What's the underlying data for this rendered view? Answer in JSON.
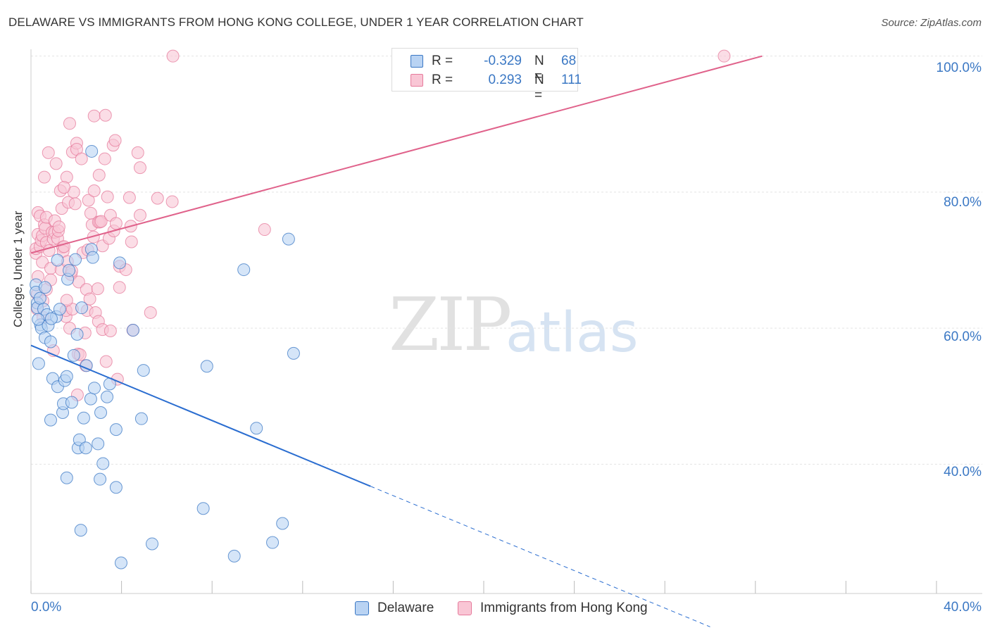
{
  "title": "DELAWARE VS IMMIGRANTS FROM HONG KONG COLLEGE, UNDER 1 YEAR CORRELATION CHART",
  "source": "Source: ZipAtlas.com",
  "watermark": {
    "zip": "ZIP",
    "atlas": "atlas"
  },
  "colors": {
    "blue_fill": "#b9d3f3",
    "blue_stroke": "#3b78c4",
    "blue_line": "#2a6dd0",
    "pink_fill": "#f9c6d5",
    "pink_stroke": "#e67a9b",
    "pink_line": "#e0628b",
    "grid": "#e4e4e4",
    "tick_text": "#3b78c4"
  },
  "legend": {
    "rows": [
      {
        "r_label": "R =",
        "r_value": "-0.329",
        "n_label": "N =",
        "n_value": "68"
      },
      {
        "r_label": "R =",
        "r_value": "0.293",
        "n_label": "N =",
        "n_value": "111"
      }
    ]
  },
  "bottom_legend": {
    "delaware": "Delaware",
    "hongkong": "Immigrants from Hong Kong"
  },
  "chart_data": {
    "type": "scatter",
    "title": "DELAWARE VS IMMIGRANTS FROM HONG KONG COLLEGE, UNDER 1 YEAR CORRELATION CHART",
    "xlabel": "",
    "ylabel": "College, Under 1 year",
    "xlim": [
      0,
      0.4
    ],
    "ylim": [
      0.21,
      1.01
    ],
    "x_tick_labels": {
      "left": "0.0%",
      "right": "40.0%"
    },
    "y_ticks": [
      {
        "value": 1.0,
        "label": "100.0%"
      },
      {
        "value": 0.8,
        "label": "80.0%"
      },
      {
        "value": 0.6,
        "label": "60.0%"
      },
      {
        "value": 0.4,
        "label": "40.0%"
      }
    ],
    "grid": true,
    "series": [
      {
        "name": "Delaware",
        "trend": {
          "x0": 0.0,
          "y0": 0.5747,
          "x1": 0.15,
          "y1": 0.3676,
          "dash_to_x": 0.3,
          "dash_to_y": 0.161
        },
        "points": [
          [
            0.0022,
            0.664
          ],
          [
            0.0022,
            0.653
          ],
          [
            0.0028,
            0.637
          ],
          [
            0.0028,
            0.63
          ],
          [
            0.0034,
            0.548
          ],
          [
            0.004,
            0.644
          ],
          [
            0.0042,
            0.605
          ],
          [
            0.0046,
            0.6
          ],
          [
            0.0056,
            0.628
          ],
          [
            0.0062,
            0.586
          ],
          [
            0.0071,
            0.62
          ],
          [
            0.0076,
            0.604
          ],
          [
            0.0087,
            0.465
          ],
          [
            0.0087,
            0.58
          ],
          [
            0.0096,
            0.526
          ],
          [
            0.0112,
            0.617
          ],
          [
            0.0118,
            0.514
          ],
          [
            0.0127,
            0.628
          ],
          [
            0.014,
            0.476
          ],
          [
            0.0143,
            0.489
          ],
          [
            0.0149,
            0.523
          ],
          [
            0.0158,
            0.38
          ],
          [
            0.0158,
            0.529
          ],
          [
            0.0162,
            0.672
          ],
          [
            0.0168,
            0.685
          ],
          [
            0.018,
            0.491
          ],
          [
            0.0189,
            0.56
          ],
          [
            0.0196,
            0.701
          ],
          [
            0.0208,
            0.424
          ],
          [
            0.0214,
            0.436
          ],
          [
            0.022,
            0.303
          ],
          [
            0.0224,
            0.63
          ],
          [
            0.0233,
            0.468
          ],
          [
            0.0242,
            0.424
          ],
          [
            0.0245,
            0.545
          ],
          [
            0.0264,
            0.496
          ],
          [
            0.0267,
            0.716
          ],
          [
            0.0273,
            0.704
          ],
          [
            0.028,
            0.512
          ],
          [
            0.0296,
            0.43
          ],
          [
            0.0305,
            0.378
          ],
          [
            0.0308,
            0.476
          ],
          [
            0.0318,
            0.401
          ],
          [
            0.0336,
            0.499
          ],
          [
            0.0348,
            0.518
          ],
          [
            0.0376,
            0.451
          ],
          [
            0.0376,
            0.366
          ],
          [
            0.0392,
            0.696
          ],
          [
            0.0398,
            0.255
          ],
          [
            0.0451,
            0.597
          ],
          [
            0.0488,
            0.467
          ],
          [
            0.0497,
            0.538
          ],
          [
            0.0535,
            0.283
          ],
          [
            0.0761,
            0.335
          ],
          [
            0.0777,
            0.544
          ],
          [
            0.0898,
            0.265
          ],
          [
            0.094,
            0.686
          ],
          [
            0.0996,
            0.453
          ],
          [
            0.1067,
            0.285
          ],
          [
            0.1111,
            0.313
          ],
          [
            0.1138,
            0.731
          ],
          [
            0.116,
            0.563
          ],
          [
            0.0268,
            0.86
          ],
          [
            0.0062,
            0.66
          ],
          [
            0.009,
            0.614
          ],
          [
            0.0032,
            0.613
          ],
          [
            0.0117,
            0.7
          ],
          [
            0.0204,
            0.591
          ]
        ]
      },
      {
        "name": "Immigrants from Hong Kong",
        "trend": {
          "x0": 0.0,
          "y0": 0.7105,
          "x1": 0.323,
          "y1": 1.0
        },
        "points": [
          [
            0.0022,
            0.71
          ],
          [
            0.0022,
            0.717
          ],
          [
            0.0028,
            0.65
          ],
          [
            0.0028,
            0.628
          ],
          [
            0.0031,
            0.738
          ],
          [
            0.0031,
            0.77
          ],
          [
            0.0031,
            0.676
          ],
          [
            0.004,
            0.72
          ],
          [
            0.004,
            0.765
          ],
          [
            0.0045,
            0.729
          ],
          [
            0.005,
            0.736
          ],
          [
            0.005,
            0.697
          ],
          [
            0.0053,
            0.64
          ],
          [
            0.0053,
            0.616
          ],
          [
            0.0059,
            0.752
          ],
          [
            0.0059,
            0.822
          ],
          [
            0.0062,
            0.747
          ],
          [
            0.0068,
            0.763
          ],
          [
            0.0068,
            0.726
          ],
          [
            0.0068,
            0.657
          ],
          [
            0.0077,
            0.858
          ],
          [
            0.008,
            0.714
          ],
          [
            0.0087,
            0.688
          ],
          [
            0.0087,
            0.671
          ],
          [
            0.0093,
            0.741
          ],
          [
            0.0099,
            0.567
          ],
          [
            0.0099,
            0.731
          ],
          [
            0.0105,
            0.758
          ],
          [
            0.0105,
            0.741
          ],
          [
            0.0111,
            0.842
          ],
          [
            0.0118,
            0.732
          ],
          [
            0.0121,
            0.743
          ],
          [
            0.0124,
            0.749
          ],
          [
            0.013,
            0.802
          ],
          [
            0.0133,
            0.686
          ],
          [
            0.0136,
            0.776
          ],
          [
            0.014,
            0.719
          ],
          [
            0.0142,
            0.713
          ],
          [
            0.0146,
            0.72
          ],
          [
            0.0155,
            0.617
          ],
          [
            0.0155,
            0.626
          ],
          [
            0.0158,
            0.822
          ],
          [
            0.0161,
            0.698
          ],
          [
            0.0165,
            0.785
          ],
          [
            0.0171,
            0.901
          ],
          [
            0.0177,
            0.679
          ],
          [
            0.018,
            0.684
          ],
          [
            0.0183,
            0.859
          ],
          [
            0.0183,
            0.628
          ],
          [
            0.0189,
            0.8
          ],
          [
            0.0195,
            0.783
          ],
          [
            0.0202,
            0.872
          ],
          [
            0.0202,
            0.863
          ],
          [
            0.0205,
            0.502
          ],
          [
            0.0208,
            0.562
          ],
          [
            0.0211,
            0.668
          ],
          [
            0.0217,
            0.561
          ],
          [
            0.0223,
            0.849
          ],
          [
            0.023,
            0.711
          ],
          [
            0.0239,
            0.593
          ],
          [
            0.0242,
            0.545
          ],
          [
            0.0245,
            0.657
          ],
          [
            0.0248,
            0.626
          ],
          [
            0.0251,
            0.715
          ],
          [
            0.0254,
            0.788
          ],
          [
            0.026,
            0.643
          ],
          [
            0.0264,
            0.769
          ],
          [
            0.027,
            0.752
          ],
          [
            0.0276,
            0.734
          ],
          [
            0.0279,
            0.802
          ],
          [
            0.0279,
            0.912
          ],
          [
            0.0285,
            0.623
          ],
          [
            0.0295,
            0.658
          ],
          [
            0.0298,
            0.756
          ],
          [
            0.0298,
            0.61
          ],
          [
            0.0301,
            0.825
          ],
          [
            0.0304,
            0.756
          ],
          [
            0.031,
            0.757
          ],
          [
            0.0316,
            0.721
          ],
          [
            0.0316,
            0.598
          ],
          [
            0.0326,
            0.849
          ],
          [
            0.0329,
            0.913
          ],
          [
            0.0332,
            0.551
          ],
          [
            0.0338,
            0.793
          ],
          [
            0.0345,
            0.732
          ],
          [
            0.0351,
            0.766
          ],
          [
            0.0351,
            0.596
          ],
          [
            0.0363,
            0.869
          ],
          [
            0.0366,
            0.743
          ],
          [
            0.0372,
            0.876
          ],
          [
            0.0376,
            0.754
          ],
          [
            0.0382,
            0.525
          ],
          [
            0.0391,
            0.691
          ],
          [
            0.0391,
            0.66
          ],
          [
            0.0419,
            0.686
          ],
          [
            0.0435,
            0.792
          ],
          [
            0.0441,
            0.75
          ],
          [
            0.0444,
            0.727
          ],
          [
            0.045,
            0.597
          ],
          [
            0.0472,
            0.858
          ],
          [
            0.0482,
            0.766
          ],
          [
            0.0482,
            0.836
          ],
          [
            0.0528,
            0.623
          ],
          [
            0.0559,
            0.791
          ],
          [
            0.0624,
            0.786
          ],
          [
            0.0627,
            1.0
          ],
          [
            0.0146,
            0.807
          ],
          [
            0.0171,
            0.6
          ],
          [
            0.1032,
            0.745
          ],
          [
            0.0158,
            0.641
          ],
          [
            0.3062,
            1.0
          ]
        ]
      }
    ]
  }
}
